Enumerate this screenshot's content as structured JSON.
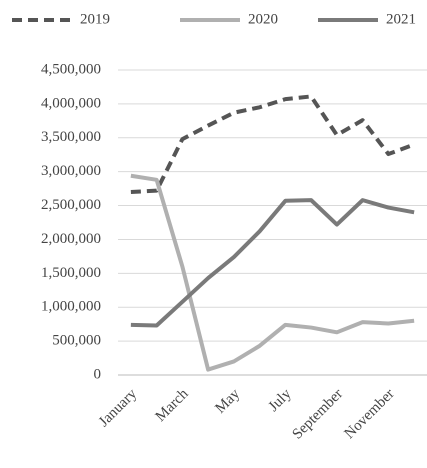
{
  "chart_data": {
    "type": "line",
    "categories": [
      "January",
      null,
      "March",
      null,
      "May",
      null,
      "July",
      null,
      "September",
      null,
      "November",
      null
    ],
    "series": [
      {
        "name": "2019",
        "color": "#555555",
        "dashed": true,
        "values": [
          2700000,
          2720000,
          3480000,
          3680000,
          3870000,
          3950000,
          4070000,
          4110000,
          3540000,
          3760000,
          3260000,
          3400000
        ]
      },
      {
        "name": "2020",
        "color": "#b0b0b0",
        "dashed": false,
        "values": [
          2940000,
          2880000,
          1600000,
          80000,
          200000,
          430000,
          740000,
          700000,
          630000,
          780000,
          760000,
          800000
        ]
      },
      {
        "name": "2021",
        "color": "#7a7a7a",
        "dashed": false,
        "values": [
          740000,
          730000,
          1080000,
          1430000,
          1740000,
          2120000,
          2570000,
          2580000,
          2220000,
          2580000,
          2470000,
          2400000
        ]
      }
    ],
    "ylim": [
      0,
      4500000
    ],
    "yticks": [
      0,
      {
        "value": 500000,
        "label": "500,000"
      },
      {
        "value": 1000000,
        "label": "1,000,000"
      },
      {
        "value": 1500000,
        "label": "1,500,000"
      },
      {
        "value": 2000000,
        "label": "2,000,000"
      },
      {
        "value": 2500000,
        "label": "2,500,000"
      },
      {
        "value": 3000000,
        "label": "3,000,000"
      },
      {
        "value": 3500000,
        "label": "3,500,000"
      },
      {
        "value": 4000000,
        "label": "4,000,000"
      },
      {
        "value": 4500000,
        "label": "4,500,000"
      }
    ],
    "grid": true,
    "legend": "top"
  }
}
